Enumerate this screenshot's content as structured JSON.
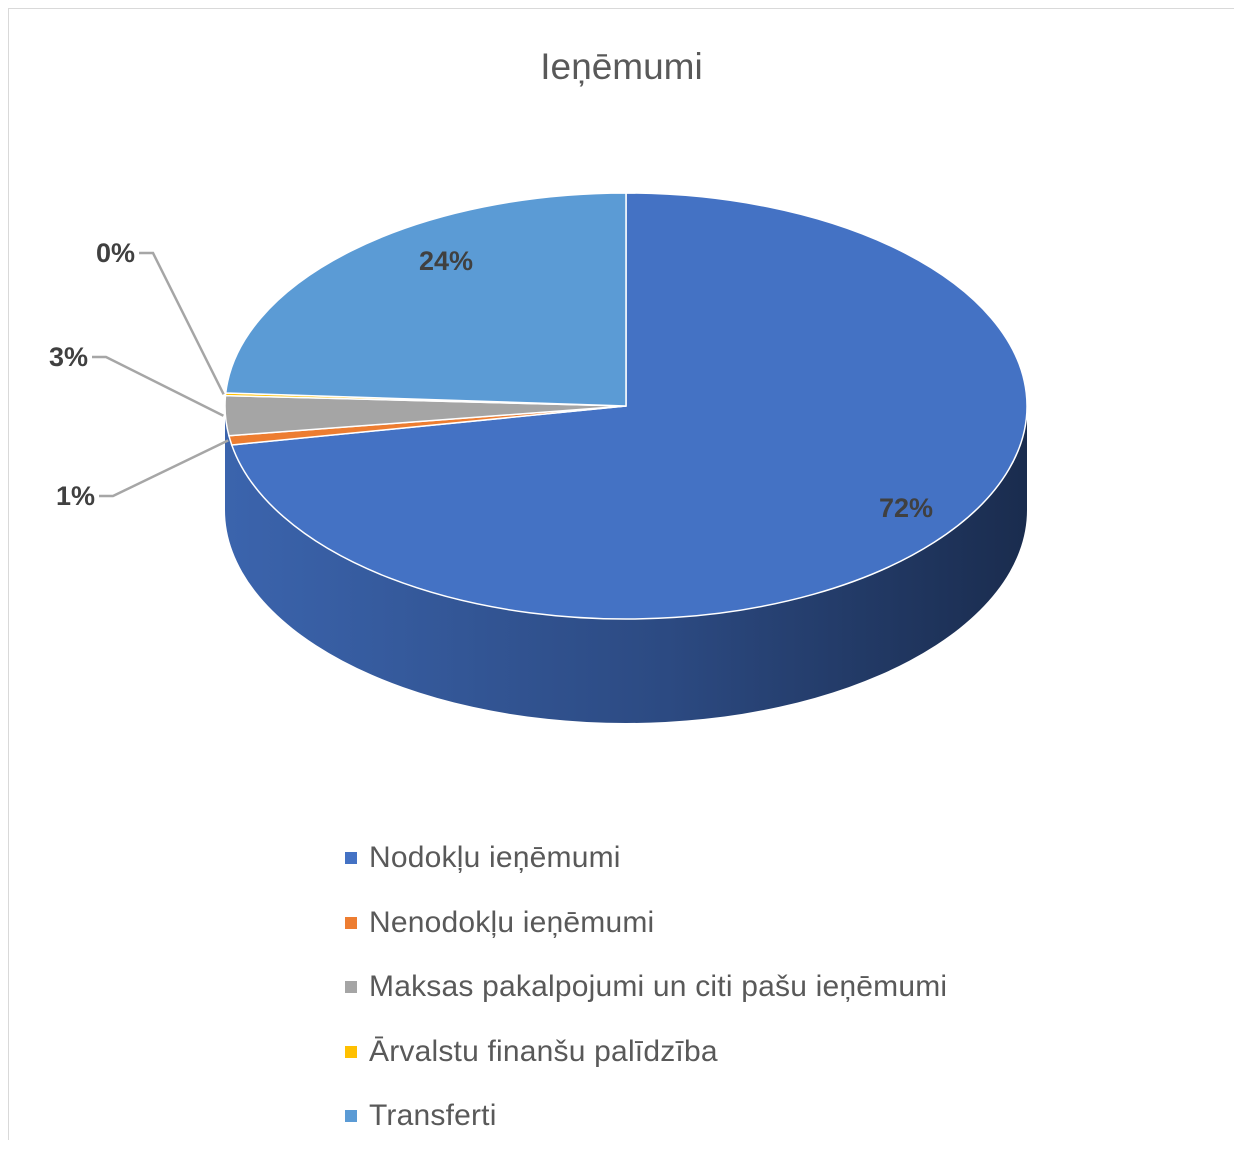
{
  "chart_data": {
    "type": "pie",
    "title": "Ieņēmumi",
    "categories": [
      "Nodokļu ieņēmumi",
      "Nenodokļu ieņēmumi",
      "Maksas pakalpojumi un citi pašu ieņēmumi",
      "Ārvalstu finanšu palīdzība",
      "Transferti"
    ],
    "values": [
      72,
      0.7,
      3,
      0.2,
      24
    ],
    "data_labels": [
      "72%",
      "1%",
      "3%",
      "0%",
      "24%"
    ],
    "colors": [
      "#4472C4",
      "#ED7D31",
      "#A5A5A5",
      "#FFC000",
      "#5B9BD5"
    ],
    "style": "3d",
    "legend": "bottom"
  }
}
